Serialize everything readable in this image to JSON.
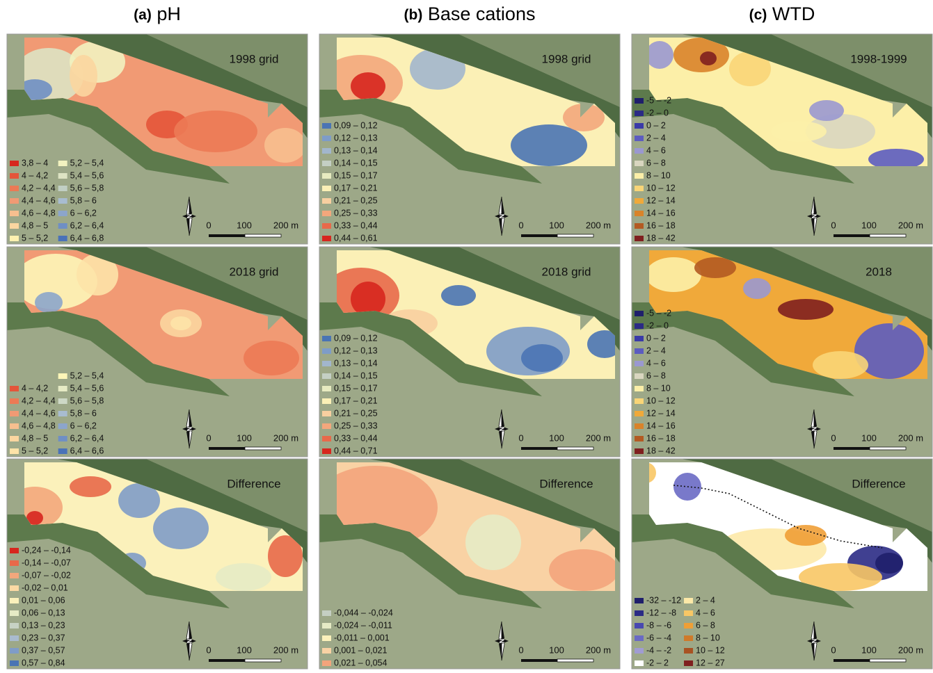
{
  "columns": [
    {
      "letter": "(a)",
      "name": "pH"
    },
    {
      "letter": "(b)",
      "name": "Base cations"
    },
    {
      "letter": "(c)",
      "name": "WTD"
    }
  ],
  "scale_labels": [
    "0",
    "100",
    "200 m"
  ],
  "north_label": "N",
  "panels": [
    {
      "title": "1998 grid",
      "legend": [
        [
          {
            "label": "3,8 – 4",
            "color": "#d7261e"
          },
          {
            "label": "4 – 4,2",
            "color": "#e4553a"
          },
          {
            "label": "4,2 – 4,4",
            "color": "#ec7a55"
          },
          {
            "label": "4,4 – 4,6",
            "color": "#f19a74"
          },
          {
            "label": "4,6 – 4,8",
            "color": "#f7bf8f"
          },
          {
            "label": "4,8 – 5",
            "color": "#fbd6a0"
          },
          {
            "label": "5 – 5,2",
            "color": "#fdf1b0"
          }
        ],
        [
          {
            "label": "5,2 – 5,4",
            "color": "#f2f2c0"
          },
          {
            "label": "5,4 – 5,6",
            "color": "#dde3c3"
          },
          {
            "label": "5,6 – 5,8",
            "color": "#c1cfc4"
          },
          {
            "label": "5,8 – 6",
            "color": "#a8bcd0"
          },
          {
            "label": "6 – 6,2",
            "color": "#8ca5cb"
          },
          {
            "label": "6,2 – 6,4",
            "color": "#6f8fc4"
          },
          {
            "label": "6,4 – 6,8",
            "color": "#4a72b8"
          }
        ]
      ]
    },
    {
      "title": "1998 grid",
      "legend": [
        [
          {
            "label": "0,09 – 0,12",
            "color": "#4a74b4"
          },
          {
            "label": "0,12 – 0,13",
            "color": "#7e9cc8"
          },
          {
            "label": "0,13 – 0,14",
            "color": "#a2b6cd"
          },
          {
            "label": "0,14 – 0,15",
            "color": "#c4cfc4"
          },
          {
            "label": "0,15 – 0,17",
            "color": "#e7ebc0"
          },
          {
            "label": "0,17 – 0,21",
            "color": "#fbf0b6"
          },
          {
            "label": "0,21 – 0,25",
            "color": "#f8cfa0"
          },
          {
            "label": "0,25 – 0,33",
            "color": "#f3a77c"
          },
          {
            "label": "0,33 – 0,44",
            "color": "#e8694a"
          },
          {
            "label": "0,44 – 0,61",
            "color": "#d7261e"
          }
        ]
      ]
    },
    {
      "title": "1998-1999",
      "legend": [
        [
          {
            "label": "-5 – -2",
            "color": "#1f1f6b"
          },
          {
            "label": "-2 – 0",
            "color": "#2b2b85"
          },
          {
            "label": "0 – 2",
            "color": "#3a3aa8"
          },
          {
            "label": "2 – 4",
            "color": "#5c5cc0"
          },
          {
            "label": "4 – 6",
            "color": "#9a98d0"
          },
          {
            "label": "6 – 8",
            "color": "#d9d6c0"
          },
          {
            "label": "8 – 10",
            "color": "#fcefa8"
          },
          {
            "label": "10 – 12",
            "color": "#f9d577"
          },
          {
            "label": "12 – 14",
            "color": "#f0a93a"
          },
          {
            "label": "14 – 16",
            "color": "#d9832a"
          },
          {
            "label": "16 – 18",
            "color": "#b35a22"
          },
          {
            "label": "18 – 42",
            "color": "#7f1f1f"
          }
        ]
      ]
    },
    {
      "title": "2018 grid",
      "legend": [
        [
          {
            "label": "4 – 4,2",
            "color": "#e4553a"
          },
          {
            "label": "4,2 – 4,4",
            "color": "#ec7a55"
          },
          {
            "label": "4,4 – 4,6",
            "color": "#f19a74"
          },
          {
            "label": "4,6 – 4,8",
            "color": "#f7bf8f"
          },
          {
            "label": "4,8 – 5",
            "color": "#fbd6a0"
          },
          {
            "label": "5 – 5,2",
            "color": "#fde3a8"
          }
        ],
        [
          {
            "label": "5,2 – 5,4",
            "color": "#fdf6b8"
          },
          {
            "label": "5,4 – 5,6",
            "color": "#e6ebc5"
          },
          {
            "label": "5,6 – 5,8",
            "color": "#cdd8c6"
          },
          {
            "label": "5,8 – 6",
            "color": "#a8bcd0"
          },
          {
            "label": "6 – 6,2",
            "color": "#8ca5cb"
          },
          {
            "label": "6,2 – 6,4",
            "color": "#6f8fc4"
          },
          {
            "label": "6,4 – 6,6",
            "color": "#4a72b8"
          }
        ]
      ]
    },
    {
      "title": "2018 grid",
      "legend": [
        [
          {
            "label": "0,09 – 0,12",
            "color": "#4a74b4"
          },
          {
            "label": "0,12 – 0,13",
            "color": "#7e9cc8"
          },
          {
            "label": "0,13 – 0,14",
            "color": "#a2b6cd"
          },
          {
            "label": "0,14 – 0,15",
            "color": "#c4cfc4"
          },
          {
            "label": "0,15 – 0,17",
            "color": "#e7ebc0"
          },
          {
            "label": "0,17 – 0,21",
            "color": "#fbf0b6"
          },
          {
            "label": "0,21 – 0,25",
            "color": "#f8cfa0"
          },
          {
            "label": "0,25 – 0,33",
            "color": "#f3a77c"
          },
          {
            "label": "0,33 – 0,44",
            "color": "#e8694a"
          },
          {
            "label": "0,44 – 0,71",
            "color": "#d7261e"
          }
        ]
      ]
    },
    {
      "title": "2018",
      "legend": [
        [
          {
            "label": "-5 – -2",
            "color": "#1f1f6b"
          },
          {
            "label": "-2 – 0",
            "color": "#2b2b85"
          },
          {
            "label": "0 – 2",
            "color": "#3a3aa8"
          },
          {
            "label": "2 – 4",
            "color": "#5c5cc0"
          },
          {
            "label": "4 – 6",
            "color": "#9a98d0"
          },
          {
            "label": "6 – 8",
            "color": "#d9d6c0"
          },
          {
            "label": "8 – 10",
            "color": "#fcefa8"
          },
          {
            "label": "10 – 12",
            "color": "#f9d577"
          },
          {
            "label": "12 – 14",
            "color": "#f0a93a"
          },
          {
            "label": "14 – 16",
            "color": "#d9832a"
          },
          {
            "label": "16 – 18",
            "color": "#b35a22"
          },
          {
            "label": "18 – 42",
            "color": "#7f1f1f"
          }
        ]
      ]
    },
    {
      "title": "Difference",
      "legend": [
        [
          {
            "label": "-0,24 – -0,14",
            "color": "#d7261e"
          },
          {
            "label": "-0,14 – -0,07",
            "color": "#e8694a"
          },
          {
            "label": "-0,07 – -0,02",
            "color": "#f3a77c"
          },
          {
            "label": "-0,02 – 0,01",
            "color": "#fbd9a4"
          },
          {
            "label": "0,01 – 0,06",
            "color": "#fbf1bb"
          },
          {
            "label": "0,06 – 0,13",
            "color": "#e6ebc5"
          },
          {
            "label": "0,13 – 0,23",
            "color": "#c7d2c4"
          },
          {
            "label": "0,23 – 0,37",
            "color": "#a9bbce"
          },
          {
            "label": "0,37 – 0,57",
            "color": "#7f9cc8"
          },
          {
            "label": "0,57 – 0,84",
            "color": "#4a74b4"
          }
        ]
      ]
    },
    {
      "title": "Difference",
      "legend": [
        [
          {
            "label": "-0,044 – -0,024",
            "color": "#c5cfc3"
          },
          {
            "label": "-0,024 – -0,011",
            "color": "#e6ebc5"
          },
          {
            "label": "-0,011 – 0,001",
            "color": "#fbf1bb"
          },
          {
            "label": "0,001 – 0,021",
            "color": "#f9d2a4"
          },
          {
            "label": "0,021 – 0,054",
            "color": "#f3a47c"
          }
        ]
      ]
    },
    {
      "title": "Difference",
      "legend": [
        [
          {
            "label": "-32 – -12",
            "color": "#1f1f6b"
          },
          {
            "label": "-12 – -8",
            "color": "#2b2b85"
          },
          {
            "label": "-8 – -6",
            "color": "#4848b0"
          },
          {
            "label": "-6 – -4",
            "color": "#6a6ac4"
          },
          {
            "label": "-4 – -2",
            "color": "#a09cd2"
          },
          {
            "label": "-2 – 2",
            "color": "#ffffff"
          }
        ],
        [
          {
            "label": "2 – 4",
            "color": "#fde9a8"
          },
          {
            "label": "4 – 6",
            "color": "#f8c765"
          },
          {
            "label": "6 – 8",
            "color": "#ef9f36"
          },
          {
            "label": "8 – 10",
            "color": "#cf7a2a"
          },
          {
            "label": "10 – 12",
            "color": "#a85222"
          },
          {
            "label": "12 – 27",
            "color": "#7f1f1f"
          }
        ]
      ]
    }
  ]
}
